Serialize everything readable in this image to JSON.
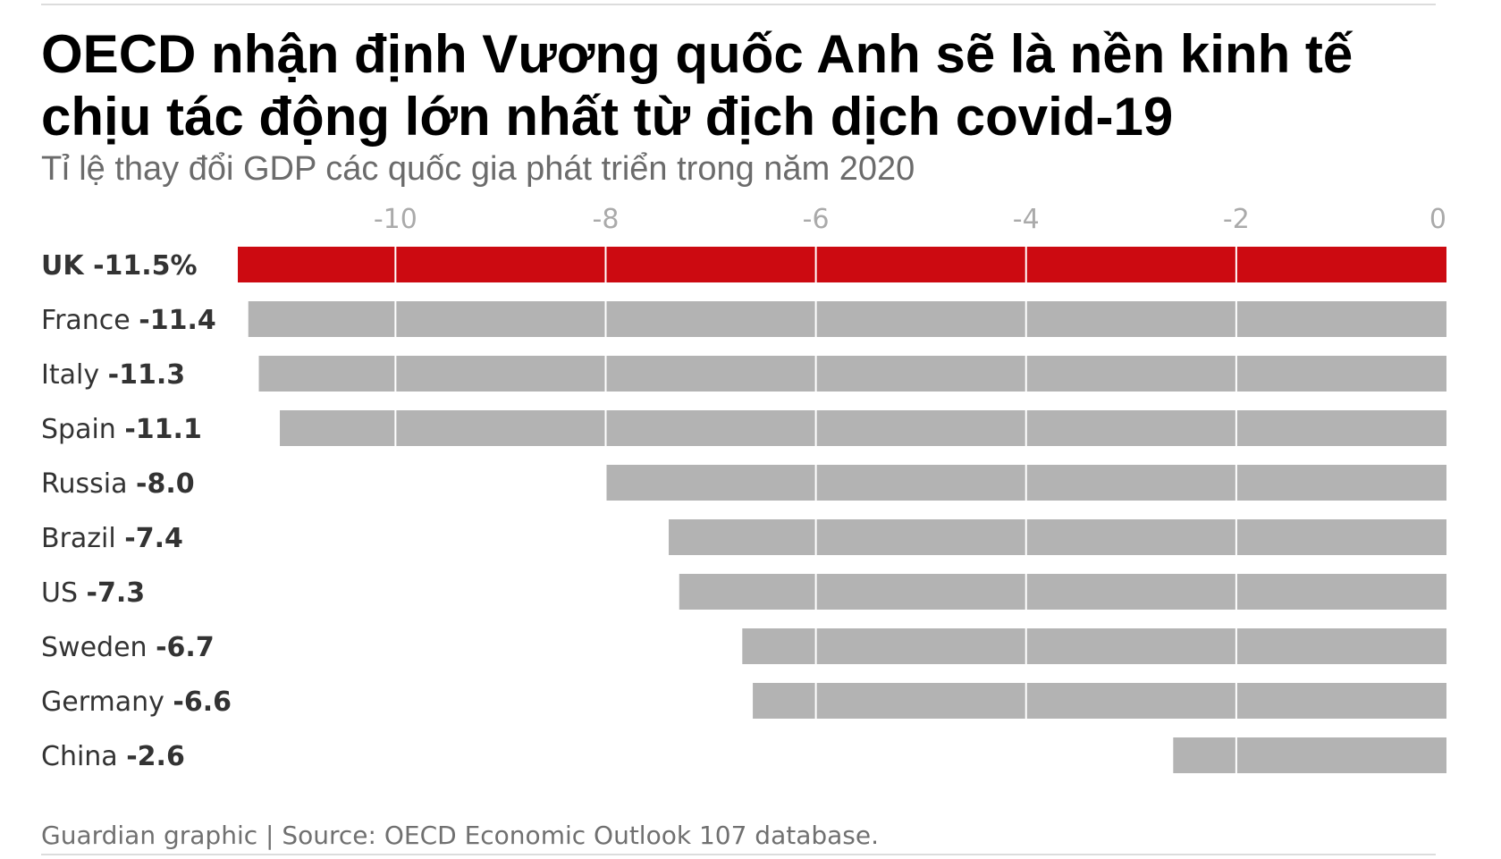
{
  "title": "OECD nhận định Vương quốc Anh sẽ là nền kinh tế chịu tác động lớn nhất từ địch dịch covid-19",
  "subtitle": "Tỉ lệ thay đổi GDP các quốc gia phát triển trong năm 2020",
  "source": "Guardian graphic | Source: OECD Economic Outlook 107 database.",
  "colors": {
    "highlight": "#cc0a11",
    "bar": "#b3b3b3",
    "grid": "#ffffff",
    "tick": "#aaaaaa",
    "label": "#333333"
  },
  "chart_data": {
    "type": "bar",
    "orientation": "horizontal",
    "title": "OECD nhận định Vương quốc Anh sẽ là nền kinh tế chịu tác động lớn nhất từ địch dịch covid-19",
    "subtitle": "Tỉ lệ thay đổi GDP các quốc gia phát triển trong năm 2020",
    "xlim": [
      -11.5,
      0
    ],
    "xticks": [
      -10,
      -8,
      -6,
      -4,
      -2,
      0
    ],
    "xtick_labels": [
      "-10",
      "-8",
      "-6",
      "-4",
      "-2",
      "0"
    ],
    "axis_position": "top",
    "grid": true,
    "categories": [
      "UK",
      "France",
      "Italy",
      "Spain",
      "Russia",
      "Brazil",
      "US",
      "Sweden",
      "Germany",
      "China"
    ],
    "values": [
      -11.5,
      -11.4,
      -11.3,
      -11.1,
      -8.0,
      -7.4,
      -7.3,
      -6.7,
      -6.6,
      -2.6
    ],
    "value_labels": [
      "-11.5%",
      "-11.4",
      "-11.3",
      "-11.1",
      "-8.0",
      "-7.4",
      "-7.3",
      "-6.7",
      "-6.6",
      "-2.6"
    ],
    "highlight_index": 0
  }
}
